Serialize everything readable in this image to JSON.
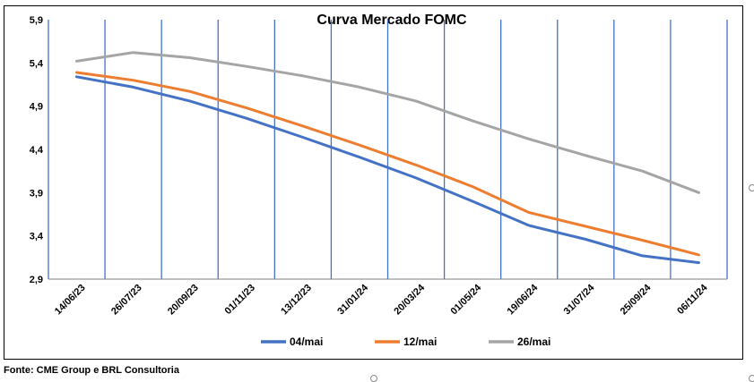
{
  "chart_data": {
    "type": "line",
    "title": "Curva Mercado FOMC",
    "xlabel": "",
    "ylabel": "",
    "ylim": [
      2.9,
      5.9
    ],
    "yticks": [
      "5,9",
      "5,4",
      "4,9",
      "4,4",
      "3,9",
      "3,4",
      "2,9"
    ],
    "ytick_values": [
      5.9,
      5.4,
      4.9,
      4.4,
      3.9,
      3.4,
      2.9
    ],
    "categories": [
      "14/06/23",
      "26/07/23",
      "20/09/23",
      "01/11/23",
      "13/12/23",
      "31/01/24",
      "20/03/24",
      "01/05/24",
      "19/06/24",
      "31/07/24",
      "25/09/24",
      "06/11/24"
    ],
    "grid": "vertical",
    "legend_position": "bottom",
    "series": [
      {
        "name": "04/mai",
        "color": "#4472C4",
        "values": [
          5.24,
          5.12,
          4.96,
          4.76,
          4.54,
          4.31,
          4.07,
          3.8,
          3.52,
          3.36,
          3.17,
          3.09
        ]
      },
      {
        "name": "12/mai",
        "color": "#ED7D31",
        "values": [
          5.29,
          5.2,
          5.07,
          4.88,
          4.67,
          4.45,
          4.22,
          3.97,
          3.67,
          3.51,
          3.35,
          3.18
        ]
      },
      {
        "name": "26/mai",
        "color": "#A5A5A5",
        "values": [
          5.42,
          5.52,
          5.46,
          5.36,
          5.25,
          5.12,
          4.96,
          4.73,
          4.52,
          4.33,
          4.15,
          3.9
        ]
      }
    ]
  },
  "source": "Fonte: CME Group e BRL Consultoria"
}
